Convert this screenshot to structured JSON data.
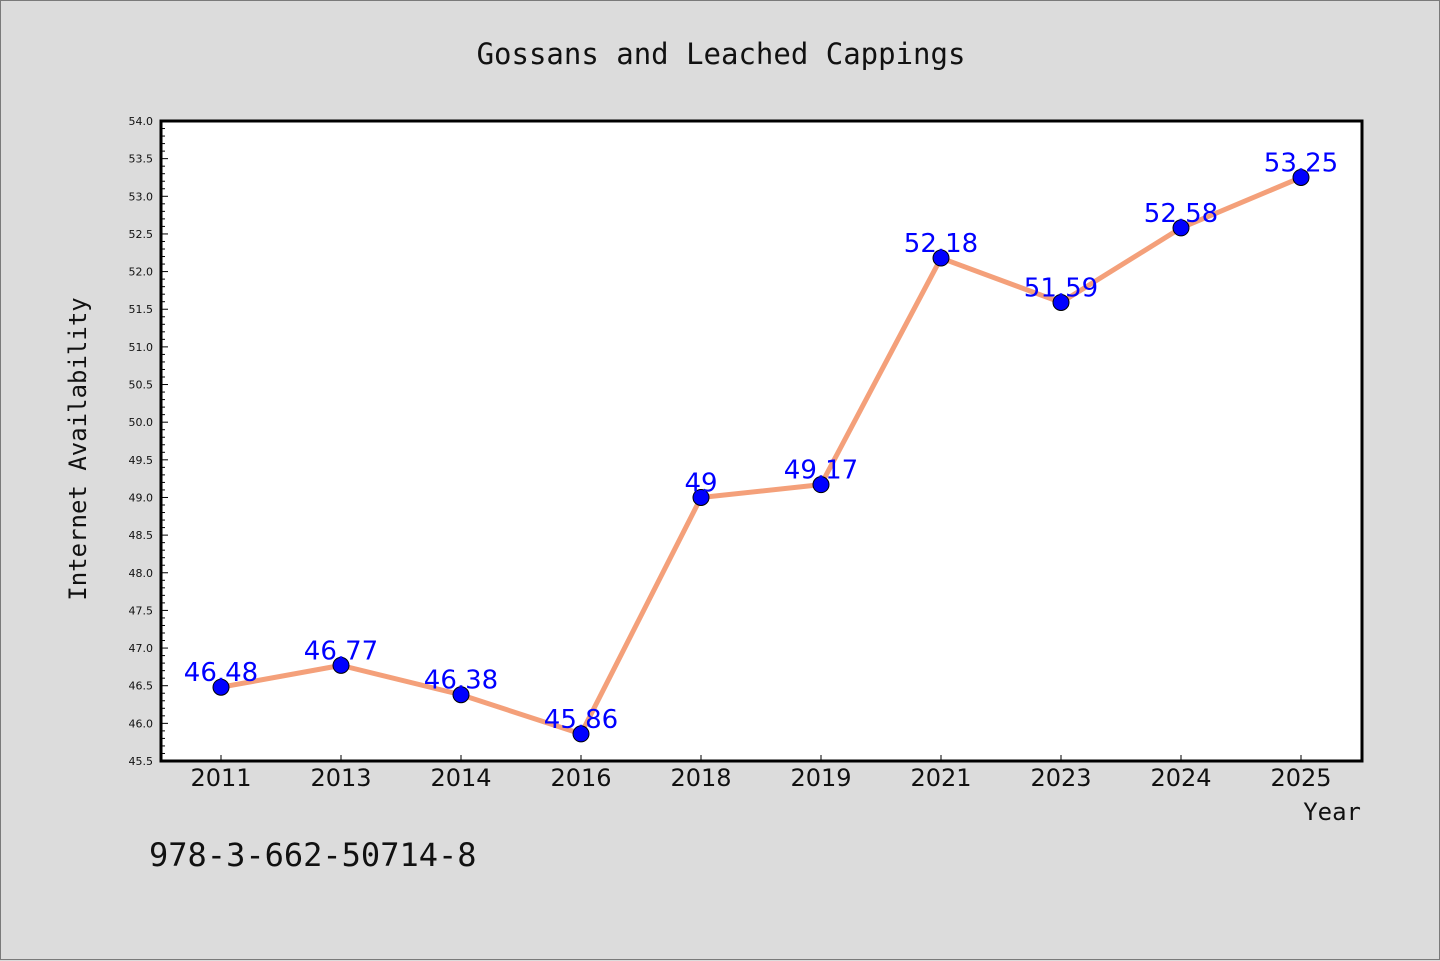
{
  "chart_data": {
    "type": "line",
    "title": "Gossans and Leached Cappings",
    "xlabel": "Year",
    "ylabel": "Internet Availability",
    "categories": [
      "2011",
      "2013",
      "2014",
      "2016",
      "2018",
      "2019",
      "2021",
      "2023",
      "2024",
      "2025"
    ],
    "series": [
      {
        "values": [
          46.48,
          46.77,
          46.38,
          45.86,
          49,
          49.17,
          52.18,
          51.59,
          52.58,
          53.25
        ],
        "data_labels": [
          "46.48",
          "46.77",
          "46.38",
          "45.86",
          "49",
          "49.17",
          "52.18",
          "51.59",
          "52.58",
          "53.25"
        ],
        "line_color": "#f4a07a",
        "marker_color": "#0000ff"
      }
    ],
    "ylim": [
      45.5,
      54.0
    ],
    "yticks": [
      "45.5",
      "46.0",
      "46.5",
      "47.0",
      "47.5",
      "48.0",
      "48.5",
      "49.0",
      "49.5",
      "50.0",
      "50.5",
      "51.0",
      "51.5",
      "52.0",
      "52.5",
      "53.0",
      "53.5",
      "54.0"
    ],
    "grid": false,
    "legend": "none"
  },
  "footer_text": "978-3-662-50714-8",
  "colors": {
    "background": "#dcdcdc",
    "plot_background": "#ffffff",
    "line": "#f4a07a",
    "marker": "#0000ff",
    "data_label": "#0000ff"
  }
}
